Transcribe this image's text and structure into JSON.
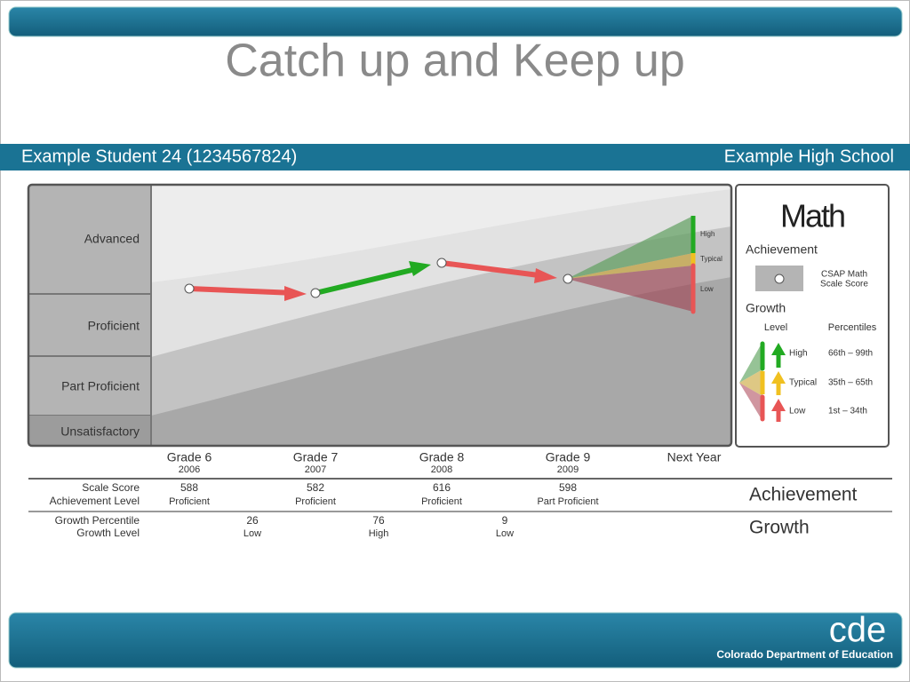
{
  "title": "Catch up and Keep up",
  "student": "Example Student 24  (1234567824)",
  "school": "Example High School",
  "levels": [
    "Advanced",
    "Proficient",
    "Part Proficient",
    "Unsatisfactory"
  ],
  "grades": [
    {
      "grade": "Grade 6",
      "year": "2006"
    },
    {
      "grade": "Grade 7",
      "year": "2007"
    },
    {
      "grade": "Grade 8",
      "year": "2008"
    },
    {
      "grade": "Grade 9",
      "year": "2009"
    },
    {
      "grade": "Next Year"
    }
  ],
  "achievement_row_labels": [
    "Scale Score",
    "Achievement Level"
  ],
  "growth_row_labels": [
    "Growth Percentile",
    "Growth Level"
  ],
  "scores": [
    {
      "score": "588",
      "level": "Proficient"
    },
    {
      "score": "582",
      "level": "Proficient"
    },
    {
      "score": "616",
      "level": "Proficient"
    },
    {
      "score": "598",
      "level": "Part Proficient"
    }
  ],
  "growth": [
    {
      "percentile": "26",
      "level": "Low"
    },
    {
      "percentile": "76",
      "level": "High"
    },
    {
      "percentile": "9",
      "level": "Low"
    }
  ],
  "section_labels": [
    "Achievement",
    "Growth"
  ],
  "cone_labels": [
    "High",
    "Typical",
    "Low"
  ],
  "legend": {
    "subject": "Math",
    "achievement": "Achievement",
    "marker": [
      "CSAP Math",
      "Scale Score"
    ],
    "growth": "Growth",
    "columns": [
      "Level",
      "Percentiles"
    ],
    "items": [
      {
        "level": "High",
        "range": "66th – 99th"
      },
      {
        "level": "Typical",
        "range": "35th – 65th"
      },
      {
        "level": "Low",
        "range": "1st – 34th"
      }
    ]
  },
  "footer": {
    "logo": "cde",
    "name": "Colorado Department of Education"
  }
}
